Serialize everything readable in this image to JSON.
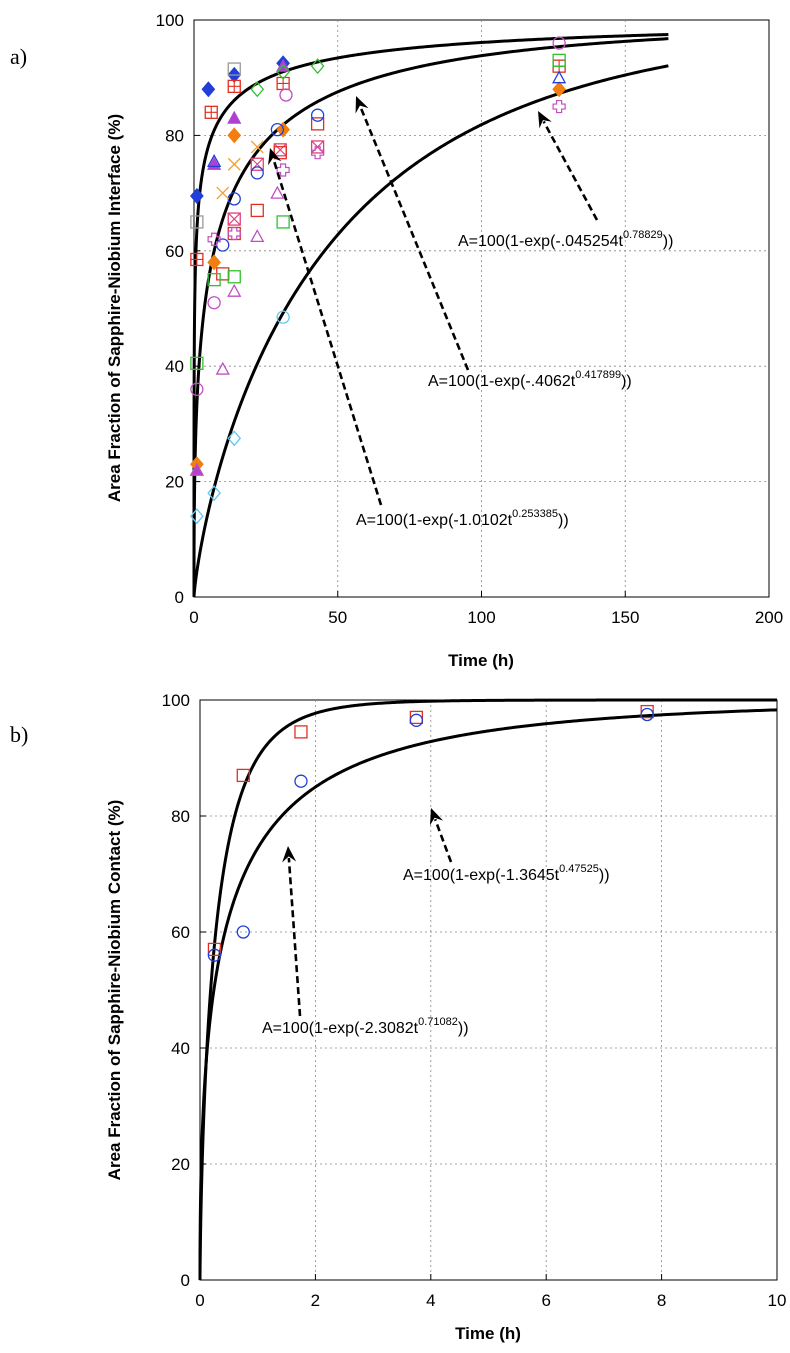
{
  "chart_data": [
    {
      "panel_label": "a)",
      "type": "scatter",
      "xlabel": "Time (h)",
      "ylabel": "Area Fraction of Sapphire-Niobium Interface (%)",
      "xlim": [
        0,
        200
      ],
      "ylim": [
        0,
        100
      ],
      "xticks": [
        "0",
        "50",
        "100",
        "150",
        "200"
      ],
      "yticks": [
        "0",
        "20",
        "40",
        "60",
        "80",
        "100"
      ],
      "grid": true,
      "curves": [
        {
          "label": "A=100(1-exp(-1.0102t",
          "exp_label": "0.253385",
          "label_end": "))",
          "k": 1.0102,
          "n": 0.253385
        },
        {
          "label": "A=100(1-exp(-.4062t",
          "exp_label": "0.417899",
          "label_end": "))",
          "k": 0.4062,
          "n": 0.417899
        },
        {
          "label": "A=100(1-exp(-.045254t",
          "exp_label": "0.78829",
          "label_end": "))",
          "k": 0.045254,
          "n": 0.78829
        }
      ],
      "series": [
        {
          "marker": "diamond-filled",
          "color": "#1f3fd8",
          "points": [
            [
              1,
              69.5
            ],
            [
              5,
              88
            ],
            [
              14,
              90.5
            ],
            [
              31,
              92.5
            ]
          ]
        },
        {
          "marker": "diamond-filled",
          "color": "#f07f10",
          "points": [
            [
              1,
              23
            ],
            [
              7,
              58
            ],
            [
              14,
              80
            ],
            [
              31,
              81
            ],
            [
              127,
              88
            ]
          ]
        },
        {
          "marker": "triangle-filled",
          "color": "#b040d0",
          "points": [
            [
              1,
              22
            ],
            [
              7,
              75
            ],
            [
              14,
              83
            ],
            [
              31,
              92
            ]
          ]
        },
        {
          "marker": "square-plus",
          "color": "#e03020",
          "points": [
            [
              1,
              58.5
            ],
            [
              6,
              84
            ],
            [
              14,
              88.5
            ],
            [
              31,
              89
            ],
            [
              127,
              92
            ]
          ]
        },
        {
          "marker": "square-x",
          "color": "#e0407a",
          "points": [
            [
              14,
              65.5
            ],
            [
              22,
              75
            ],
            [
              30,
              77.5
            ],
            [
              43,
              78
            ]
          ]
        },
        {
          "marker": "square",
          "color": "#e03020",
          "points": [
            [
              10,
              56
            ],
            [
              14,
              63
            ],
            [
              22,
              67
            ],
            [
              30,
              77
            ],
            [
              43,
              82
            ]
          ]
        },
        {
          "marker": "square",
          "color": "#30c030",
          "points": [
            [
              1,
              40.5
            ],
            [
              7,
              55
            ],
            [
              14,
              55.5
            ],
            [
              31,
              65
            ],
            [
              127,
              93
            ]
          ]
        },
        {
          "marker": "square",
          "color": "#999999",
          "points": [
            [
              1,
              65
            ],
            [
              14,
              91.5
            ]
          ]
        },
        {
          "marker": "circle",
          "color": "#1f3fd8",
          "points": [
            [
              10,
              61
            ],
            [
              14,
              69
            ],
            [
              22,
              73.5
            ],
            [
              29,
              81
            ],
            [
              43,
              83.5
            ]
          ]
        },
        {
          "marker": "circle",
          "color": "#c050c0",
          "points": [
            [
              1,
              36
            ],
            [
              7,
              51
            ],
            [
              32,
              87
            ],
            [
              127,
              96
            ]
          ]
        },
        {
          "marker": "circle",
          "color": "#60c8f0",
          "points": [
            [
              31,
              48.5
            ]
          ]
        },
        {
          "marker": "triangle",
          "color": "#c050c0",
          "points": [
            [
              1,
              22
            ],
            [
              10,
              39.5
            ],
            [
              14,
              53
            ],
            [
              22,
              62.5
            ],
            [
              29,
              70
            ]
          ]
        },
        {
          "marker": "triangle",
          "color": "#1f3fd8",
          "points": [
            [
              7,
              75.5
            ],
            [
              127,
              90
            ]
          ]
        },
        {
          "marker": "diamond",
          "color": "#30c030",
          "points": [
            [
              22,
              88
            ],
            [
              31,
              91
            ],
            [
              43,
              92
            ]
          ]
        },
        {
          "marker": "diamond",
          "color": "#60c8f0",
          "points": [
            [
              1,
              14
            ],
            [
              7,
              18
            ],
            [
              14,
              27.5
            ]
          ]
        },
        {
          "marker": "cross-x",
          "color": "#f0a030",
          "points": [
            [
              10,
              70
            ],
            [
              14,
              75
            ],
            [
              22,
              78
            ]
          ]
        },
        {
          "marker": "plus",
          "color": "#c050c0",
          "points": [
            [
              7,
              62
            ],
            [
              14,
              63
            ],
            [
              31,
              74
            ],
            [
              43,
              77
            ],
            [
              127,
              85
            ]
          ]
        }
      ]
    },
    {
      "panel_label": "b)",
      "type": "scatter",
      "xlabel": "Time (h)",
      "ylabel": "Area Fraction of Sapphire-Niobium Contact (%)",
      "xlim": [
        0,
        10
      ],
      "ylim": [
        0,
        100
      ],
      "xticks": [
        "0",
        "2",
        "4",
        "6",
        "8",
        "10"
      ],
      "yticks": [
        "0",
        "20",
        "40",
        "60",
        "80",
        "100"
      ],
      "grid": true,
      "curves": [
        {
          "label": "A=100(1-exp(-2.3082t",
          "exp_label": "0.71082",
          "label_end": "))",
          "k": 2.3082,
          "n": 0.71082
        },
        {
          "label": "A=100(1-exp(-1.3645t",
          "exp_label": "0.47525",
          "label_end": "))",
          "k": 1.3645,
          "n": 0.47525
        }
      ],
      "series": [
        {
          "marker": "square",
          "color": "#e03020",
          "points": [
            [
              0.25,
              57
            ],
            [
              0.75,
              87
            ],
            [
              1.75,
              94.5
            ],
            [
              3.75,
              97
            ],
            [
              7.75,
              98
            ]
          ]
        },
        {
          "marker": "circle",
          "color": "#1f3fd8",
          "points": [
            [
              0.25,
              56
            ],
            [
              0.75,
              60
            ],
            [
              1.75,
              86
            ],
            [
              3.75,
              96.5
            ],
            [
              7.75,
              97.5
            ]
          ]
        }
      ]
    }
  ]
}
